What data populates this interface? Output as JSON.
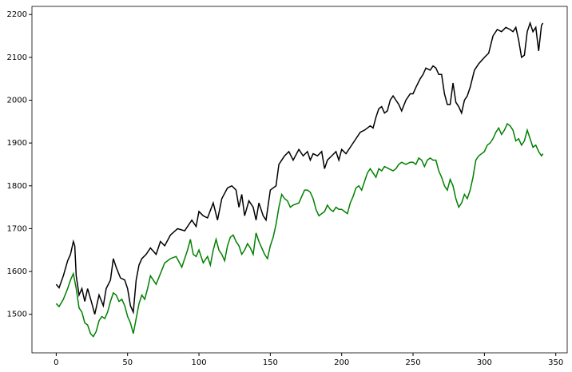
{
  "chart_data": {
    "type": "line",
    "xlim": [
      -17,
      358
    ],
    "ylim": [
      1410,
      2219
    ],
    "xticks": [
      0,
      50,
      100,
      150,
      200,
      250,
      300,
      350
    ],
    "yticks": [
      1500,
      1600,
      1700,
      1800,
      1900,
      2000,
      2100,
      2200
    ],
    "grid": false,
    "series": [
      {
        "color": "#000000",
        "x": [
          0,
          2,
          5,
          8,
          10,
          12,
          13,
          14,
          16,
          18,
          20,
          22,
          25,
          27,
          30,
          33,
          35,
          38,
          40,
          42,
          45,
          48,
          50,
          52,
          54,
          56,
          58,
          60,
          63,
          66,
          70,
          73,
          76,
          80,
          85,
          90,
          95,
          98,
          100,
          103,
          106,
          110,
          113,
          116,
          120,
          123,
          126,
          128,
          130,
          132,
          135,
          138,
          140,
          142,
          145,
          147,
          150,
          152,
          154,
          156,
          158,
          160,
          163,
          166,
          170,
          173,
          176,
          178,
          180,
          183,
          186,
          188,
          190,
          193,
          196,
          198,
          200,
          203,
          206,
          210,
          213,
          216,
          220,
          222,
          224,
          226,
          228,
          230,
          232,
          234,
          236,
          238,
          240,
          242,
          245,
          248,
          250,
          252,
          255,
          257,
          259,
          262,
          264,
          266,
          268,
          270,
          272,
          274,
          276,
          278,
          280,
          282,
          284,
          286,
          288,
          290,
          293,
          296,
          300,
          303,
          306,
          309,
          312,
          315,
          318,
          320,
          322,
          324,
          326,
          328,
          330,
          332,
          334,
          336,
          338,
          340,
          341
        ],
        "values": [
          1570,
          1562,
          1590,
          1625,
          1640,
          1670,
          1660,
          1590,
          1545,
          1560,
          1530,
          1560,
          1525,
          1500,
          1545,
          1520,
          1560,
          1580,
          1630,
          1610,
          1585,
          1580,
          1560,
          1520,
          1505,
          1580,
          1615,
          1630,
          1640,
          1655,
          1640,
          1670,
          1660,
          1685,
          1700,
          1695,
          1720,
          1705,
          1740,
          1730,
          1725,
          1760,
          1720,
          1770,
          1795,
          1800,
          1790,
          1750,
          1780,
          1730,
          1765,
          1750,
          1720,
          1760,
          1730,
          1720,
          1790,
          1795,
          1800,
          1850,
          1860,
          1870,
          1880,
          1860,
          1885,
          1870,
          1880,
          1860,
          1875,
          1870,
          1880,
          1840,
          1860,
          1870,
          1880,
          1860,
          1885,
          1875,
          1890,
          1910,
          1925,
          1930,
          1940,
          1935,
          1960,
          1980,
          1985,
          1970,
          1975,
          2000,
          2010,
          2000,
          1990,
          1975,
          2000,
          2015,
          2015,
          2030,
          2050,
          2060,
          2075,
          2070,
          2080,
          2075,
          2060,
          2060,
          2015,
          1990,
          1990,
          2040,
          1995,
          1985,
          1970,
          2000,
          2010,
          2030,
          2070,
          2085,
          2100,
          2110,
          2150,
          2165,
          2160,
          2170,
          2165,
          2160,
          2170,
          2140,
          2100,
          2105,
          2160,
          2180,
          2160,
          2170,
          2115,
          2175,
          2180
        ]
      },
      {
        "color": "#008000",
        "x": [
          0,
          2,
          5,
          8,
          10,
          12,
          14,
          16,
          18,
          20,
          22,
          24,
          26,
          28,
          30,
          32,
          34,
          36,
          38,
          40,
          42,
          44,
          46,
          48,
          50,
          52,
          54,
          56,
          58,
          60,
          62,
          64,
          66,
          68,
          70,
          73,
          76,
          80,
          84,
          88,
          90,
          92,
          94,
          96,
          98,
          100,
          103,
          106,
          108,
          110,
          112,
          114,
          116,
          118,
          120,
          122,
          124,
          126,
          128,
          130,
          132,
          134,
          136,
          138,
          140,
          142,
          144,
          146,
          148,
          150,
          152,
          154,
          156,
          158,
          160,
          162,
          164,
          166,
          170,
          172,
          174,
          176,
          178,
          180,
          182,
          184,
          186,
          188,
          190,
          192,
          194,
          196,
          198,
          200,
          202,
          204,
          206,
          208,
          210,
          212,
          214,
          216,
          218,
          220,
          222,
          224,
          226,
          228,
          230,
          233,
          236,
          238,
          240,
          242,
          245,
          248,
          250,
          252,
          254,
          256,
          258,
          260,
          262,
          264,
          266,
          268,
          270,
          272,
          274,
          276,
          278,
          280,
          282,
          284,
          286,
          288,
          290,
          292,
          294,
          296,
          298,
          300,
          302,
          304,
          306,
          308,
          310,
          312,
          314,
          316,
          318,
          320,
          322,
          324,
          326,
          328,
          330,
          332,
          334,
          336,
          338,
          340,
          341
        ],
        "values": [
          1525,
          1518,
          1535,
          1560,
          1580,
          1595,
          1560,
          1515,
          1505,
          1480,
          1475,
          1455,
          1448,
          1460,
          1485,
          1495,
          1490,
          1505,
          1530,
          1550,
          1545,
          1530,
          1535,
          1520,
          1495,
          1480,
          1455,
          1490,
          1525,
          1545,
          1535,
          1560,
          1590,
          1580,
          1570,
          1595,
          1620,
          1630,
          1635,
          1610,
          1630,
          1650,
          1675,
          1640,
          1635,
          1650,
          1620,
          1635,
          1615,
          1650,
          1675,
          1650,
          1640,
          1625,
          1660,
          1680,
          1685,
          1670,
          1660,
          1640,
          1650,
          1665,
          1655,
          1640,
          1690,
          1670,
          1655,
          1640,
          1630,
          1660,
          1680,
          1710,
          1750,
          1780,
          1770,
          1765,
          1750,
          1755,
          1760,
          1775,
          1790,
          1790,
          1785,
          1770,
          1745,
          1730,
          1735,
          1740,
          1755,
          1745,
          1740,
          1750,
          1745,
          1745,
          1740,
          1735,
          1760,
          1775,
          1795,
          1800,
          1790,
          1810,
          1830,
          1840,
          1830,
          1820,
          1840,
          1835,
          1845,
          1840,
          1835,
          1840,
          1850,
          1855,
          1850,
          1855,
          1855,
          1850,
          1865,
          1860,
          1845,
          1860,
          1865,
          1860,
          1860,
          1835,
          1820,
          1800,
          1790,
          1815,
          1800,
          1770,
          1750,
          1760,
          1780,
          1770,
          1790,
          1820,
          1860,
          1870,
          1875,
          1880,
          1895,
          1900,
          1910,
          1925,
          1935,
          1920,
          1930,
          1945,
          1940,
          1930,
          1905,
          1910,
          1895,
          1905,
          1930,
          1910,
          1890,
          1895,
          1880,
          1870,
          1875
        ]
      }
    ]
  }
}
